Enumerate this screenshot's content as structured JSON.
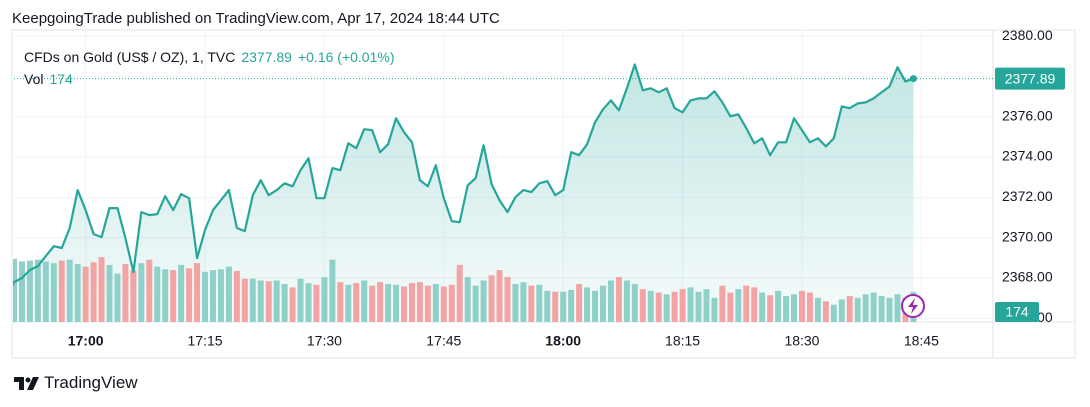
{
  "attribution": "KeepgoingTrade published on TradingView.com, Apr 17, 2024 18:44 UTC",
  "brand": "TradingView",
  "chart_data": {
    "type": "line",
    "change_label": "+0.16 (+0.01%)",
    "x": [
      "16:50",
      "16:51",
      "16:52",
      "16:53",
      "16:54",
      "16:55",
      "16:56",
      "16:57",
      "16:58",
      "16:59",
      "17:00",
      "17:01",
      "17:02",
      "17:03",
      "17:04",
      "17:05",
      "17:06",
      "17:07",
      "17:08",
      "17:09",
      "17:10",
      "17:11",
      "17:12",
      "17:13",
      "17:14",
      "17:15",
      "17:16",
      "17:17",
      "17:18",
      "17:19",
      "17:20",
      "17:21",
      "17:22",
      "17:23",
      "17:24",
      "17:25",
      "17:26",
      "17:27",
      "17:28",
      "17:29",
      "17:30",
      "17:31",
      "17:32",
      "17:33",
      "17:34",
      "17:35",
      "17:36",
      "17:37",
      "17:38",
      "17:39",
      "17:40",
      "17:41",
      "17:42",
      "17:43",
      "17:44",
      "17:45",
      "17:46",
      "17:47",
      "17:48",
      "17:49",
      "17:50",
      "17:51",
      "17:52",
      "17:53",
      "17:54",
      "17:55",
      "17:56",
      "17:57",
      "17:58",
      "17:59",
      "18:00",
      "18:01",
      "18:02",
      "18:03",
      "18:04",
      "18:05",
      "18:06",
      "18:07",
      "18:08",
      "18:09",
      "18:10",
      "18:11",
      "18:12",
      "18:13",
      "18:14",
      "18:15",
      "18:16",
      "18:17",
      "18:18",
      "18:19",
      "18:20",
      "18:21",
      "18:22",
      "18:23",
      "18:24",
      "18:25",
      "18:26",
      "18:27",
      "18:28",
      "18:29",
      "18:30",
      "18:31",
      "18:32",
      "18:33",
      "18:34",
      "18:35",
      "18:36",
      "18:37",
      "18:38",
      "18:39",
      "18:40",
      "18:41",
      "18:42",
      "18:43",
      "18:44"
    ],
    "xlim": [
      "16:51",
      "18:54"
    ],
    "xticks": [
      "17:00",
      "17:15",
      "17:30",
      "17:45",
      "18:00",
      "18:15",
      "18:30",
      "18:45"
    ],
    "ylim": [
      2365.82,
      2380.3
    ],
    "yticks": [
      {
        "value": 2366,
        "label": "2366.00"
      },
      {
        "value": 2368,
        "label": "2368.00"
      },
      {
        "value": 2370,
        "label": "2370.00"
      },
      {
        "value": 2372,
        "label": "2372.00"
      },
      {
        "value": 2374,
        "label": "2374.00"
      },
      {
        "value": 2376,
        "label": "2376.00"
      },
      {
        "value": 2378,
        "label": "2378.00"
      },
      {
        "value": 2380,
        "label": "2380.00"
      }
    ],
    "grid": true,
    "series": [
      {
        "name": "CFDs on Gold (US$ / OZ), 1, TVC",
        "color": "#26a69a",
        "values": [
          2367.01,
          2367.8,
          2368.0,
          2368.4,
          2368.59,
          2369.09,
          2369.58,
          2369.49,
          2370.48,
          2372.36,
          2371.37,
          2370.18,
          2370.03,
          2371.47,
          2371.47,
          2369.98,
          2368.3,
          2371.27,
          2371.12,
          2371.17,
          2372.06,
          2371.37,
          2372.16,
          2371.96,
          2368.99,
          2370.38,
          2371.37,
          2371.86,
          2372.36,
          2370.48,
          2370.33,
          2372.11,
          2372.85,
          2372.11,
          2372.36,
          2372.7,
          2372.55,
          2373.35,
          2373.94,
          2371.96,
          2371.96,
          2373.45,
          2373.35,
          2374.68,
          2374.44,
          2375.38,
          2375.33,
          2374.24,
          2374.63,
          2375.92,
          2375.23,
          2374.73,
          2372.85,
          2372.55,
          2373.59,
          2371.96,
          2370.82,
          2370.77,
          2372.6,
          2372.95,
          2374.58,
          2372.65,
          2371.86,
          2371.27,
          2372.01,
          2372.36,
          2372.26,
          2372.7,
          2372.8,
          2372.11,
          2372.36,
          2374.24,
          2374.09,
          2374.63,
          2375.72,
          2376.37,
          2376.81,
          2376.32,
          2377.41,
          2378.59,
          2377.31,
          2377.41,
          2377.21,
          2377.41,
          2376.42,
          2376.22,
          2376.81,
          2376.91,
          2376.91,
          2377.26,
          2376.71,
          2376.02,
          2376.12,
          2375.43,
          2374.68,
          2374.93,
          2374.09,
          2374.73,
          2374.73,
          2375.92,
          2375.33,
          2374.73,
          2374.93,
          2374.53,
          2374.93,
          2376.51,
          2376.42,
          2376.66,
          2376.71,
          2376.91,
          2377.21,
          2377.5,
          2378.45,
          2377.75,
          2377.89
        ]
      },
      {
        "name": "Vol",
        "type": "bar",
        "axis": "volume",
        "up_color": "#8fd1c8",
        "down_color": "#f2a3a3",
        "values": [
          360,
          365,
          350,
          355,
          360,
          350,
          340,
          355,
          360,
          335,
          320,
          345,
          375,
          330,
          280,
          335,
          300,
          340,
          360,
          320,
          305,
          300,
          330,
          310,
          340,
          290,
          300,
          305,
          320,
          295,
          250,
          250,
          240,
          235,
          240,
          220,
          200,
          250,
          225,
          215,
          260,
          360,
          230,
          215,
          225,
          240,
          210,
          230,
          220,
          215,
          205,
          225,
          230,
          210,
          220,
          205,
          215,
          330,
          260,
          210,
          240,
          270,
          300,
          260,
          220,
          230,
          210,
          215,
          180,
          175,
          175,
          185,
          220,
          200,
          180,
          210,
          240,
          260,
          240,
          220,
          190,
          180,
          170,
          160,
          175,
          190,
          200,
          175,
          190,
          140,
          210,
          170,
          190,
          210,
          200,
          170,
          155,
          180,
          150,
          160,
          180,
          170,
          140,
          120,
          100,
          130,
          150,
          140,
          160,
          170,
          150,
          140,
          160,
          140,
          174
        ]
      }
    ]
  }
}
